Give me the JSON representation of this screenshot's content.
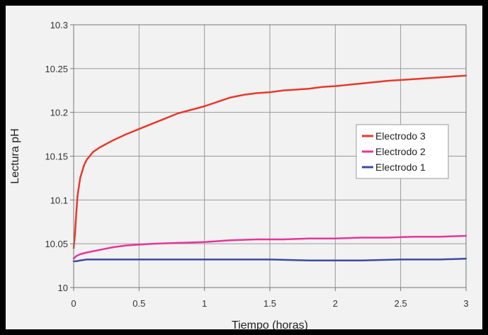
{
  "chart_data": {
    "type": "line",
    "title": "",
    "xlabel": "Tiempo (horas)",
    "ylabel": "Lectura pH",
    "xlim": [
      0,
      3
    ],
    "ylim": [
      10,
      10.3
    ],
    "x_ticks": [
      "0",
      "0.5",
      "1",
      "1.5",
      "2",
      "2.5",
      "3"
    ],
    "y_ticks": [
      "10",
      "10.05",
      "10.1",
      "10.15",
      "10.2",
      "10.25",
      "10.3"
    ],
    "grid": true,
    "legend_position": "right",
    "series": [
      {
        "name": "Electrodo 3",
        "color": "#e8392b",
        "x": [
          0,
          0.01,
          0.02,
          0.03,
          0.05,
          0.08,
          0.1,
          0.15,
          0.2,
          0.3,
          0.4,
          0.5,
          0.6,
          0.7,
          0.8,
          0.9,
          1.0,
          1.1,
          1.2,
          1.3,
          1.4,
          1.5,
          1.6,
          1.7,
          1.8,
          1.9,
          2.0,
          2.2,
          2.4,
          2.6,
          2.8,
          3.0
        ],
        "y": [
          10.045,
          10.06,
          10.085,
          10.105,
          10.125,
          10.14,
          10.146,
          10.155,
          10.16,
          10.168,
          10.175,
          10.181,
          10.187,
          10.193,
          10.199,
          10.203,
          10.207,
          10.212,
          10.217,
          10.22,
          10.222,
          10.223,
          10.225,
          10.226,
          10.227,
          10.229,
          10.23,
          10.233,
          10.236,
          10.238,
          10.24,
          10.242
        ]
      },
      {
        "name": "Electrodo 2",
        "color": "#e8359a",
        "x": [
          0,
          0.02,
          0.05,
          0.1,
          0.2,
          0.3,
          0.4,
          0.5,
          0.6,
          0.8,
          1.0,
          1.2,
          1.4,
          1.6,
          1.8,
          2.0,
          2.2,
          2.4,
          2.6,
          2.8,
          3.0
        ],
        "y": [
          10.033,
          10.036,
          10.038,
          10.04,
          10.043,
          10.046,
          10.048,
          10.049,
          10.05,
          10.051,
          10.052,
          10.054,
          10.055,
          10.055,
          10.056,
          10.056,
          10.057,
          10.057,
          10.058,
          10.058,
          10.059
        ]
      },
      {
        "name": "Electrodo 1",
        "color": "#3b4aa5",
        "x": [
          0,
          0.02,
          0.05,
          0.1,
          0.2,
          0.3,
          0.5,
          0.7,
          1.0,
          1.2,
          1.5,
          1.8,
          2.0,
          2.2,
          2.5,
          2.8,
          3.0
        ],
        "y": [
          10.03,
          10.03,
          10.031,
          10.032,
          10.032,
          10.032,
          10.032,
          10.032,
          10.032,
          10.032,
          10.032,
          10.031,
          10.031,
          10.031,
          10.032,
          10.032,
          10.033
        ]
      }
    ]
  }
}
